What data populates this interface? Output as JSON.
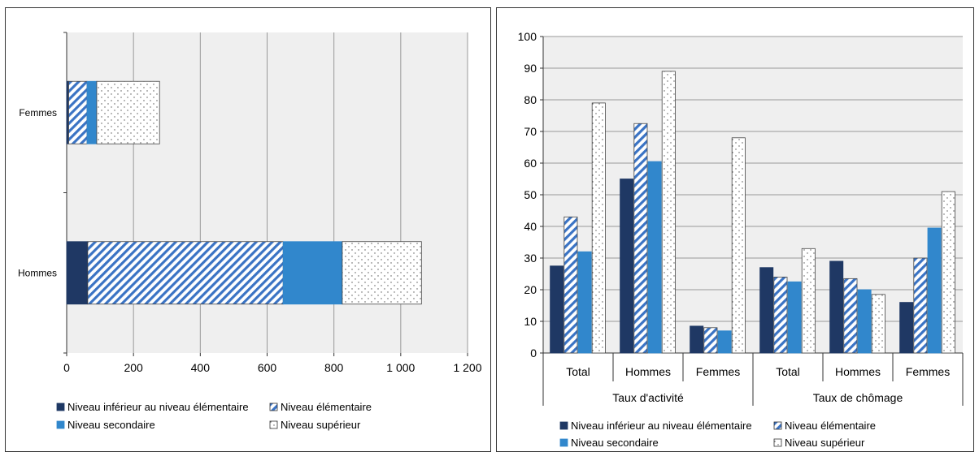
{
  "chart_data": [
    {
      "type": "bar",
      "orientation": "horizontal",
      "stacked": true,
      "categories": [
        "Femmes",
        "Hommes"
      ],
      "series": [
        {
          "name": "Niveau inférieur au niveau élémentaire",
          "values": [
            6,
            63
          ],
          "fill": "solid",
          "color": "#1f3864"
        },
        {
          "name": "Niveau élémentaire",
          "values": [
            55,
            585
          ],
          "fill": "hatch",
          "color": "#3a73c4"
        },
        {
          "name": "Niveau secondaire",
          "values": [
            29,
            177
          ],
          "fill": "solid",
          "color": "#3187cc"
        },
        {
          "name": "Niveau supérieur",
          "values": [
            188,
            237
          ],
          "fill": "dots",
          "color": "#ffffff"
        }
      ],
      "x_ticks": [
        "0",
        "200",
        "400",
        "600",
        "800",
        "1 000",
        "1 200"
      ],
      "xlim": [
        0,
        1200
      ],
      "grid": true,
      "legend_position": "bottom"
    },
    {
      "type": "bar",
      "orientation": "vertical",
      "groups": [
        {
          "label": "Taux d'activité",
          "categories": [
            "Total",
            "Hommes",
            "Femmes"
          ]
        },
        {
          "label": "Taux de chômage",
          "categories": [
            "Total",
            "Hommes",
            "Femmes"
          ]
        }
      ],
      "series": [
        {
          "name": "Niveau inférieur au niveau élémentaire",
          "values": [
            27.5,
            55,
            8.5,
            27,
            29,
            16
          ],
          "fill": "solid",
          "color": "#1f3864"
        },
        {
          "name": "Niveau élémentaire",
          "values": [
            43,
            72.5,
            8,
            24,
            23.5,
            30
          ],
          "fill": "hatch",
          "color": "#3a73c4"
        },
        {
          "name": "Niveau secondaire",
          "values": [
            32,
            60.5,
            7,
            22.5,
            20,
            39.5
          ],
          "fill": "solid",
          "color": "#3187cc"
        },
        {
          "name": "Niveau supérieur",
          "values": [
            79,
            89,
            68,
            33,
            18.5,
            51
          ],
          "fill": "dots",
          "color": "#ffffff"
        }
      ],
      "y_ticks": [
        "0",
        "10",
        "20",
        "30",
        "40",
        "50",
        "60",
        "70",
        "80",
        "90",
        "100"
      ],
      "ylim": [
        0,
        100
      ],
      "grid": true,
      "legend_position": "bottom"
    }
  ]
}
